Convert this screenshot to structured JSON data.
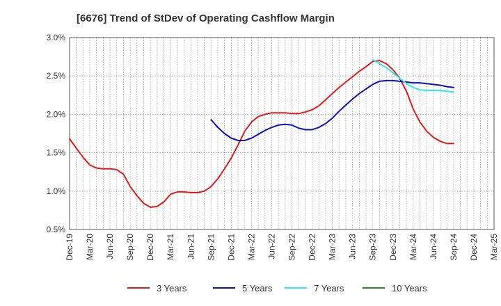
{
  "chart_data": {
    "type": "line",
    "title": "[6676]  Trend of StDev of Operating Cashflow Margin",
    "xlabel": "",
    "ylabel": "",
    "ylim": [
      0.5,
      3.0
    ],
    "y_ticks": [
      "3.0%",
      "2.5%",
      "2.0%",
      "1.5%",
      "1.0%",
      "0.5%"
    ],
    "y_tick_values": [
      3.0,
      2.5,
      2.0,
      1.5,
      1.0,
      0.5
    ],
    "x_tick_labels": [
      "Dec-19",
      "Mar-20",
      "Jun-20",
      "Sep-20",
      "Dec-20",
      "Mar-21",
      "Jun-21",
      "Sep-21",
      "Dec-21",
      "Mar-22",
      "Jun-22",
      "Sep-22",
      "Dec-22",
      "Mar-23",
      "Jun-23",
      "Sep-23",
      "Dec-23",
      "Mar-24",
      "Jun-24",
      "Sep-24",
      "Dec-24",
      "Mar-25"
    ],
    "x_range": [
      "Dec-19",
      "Mar-25"
    ],
    "grid": "dotted vertical monthly, dotted horizontal",
    "legend_position": "bottom",
    "series": [
      {
        "name": "3 Years",
        "color": "#e31a1c",
        "points": [
          [
            "Dec-19",
            1.68
          ],
          [
            "Jan-20",
            1.56
          ],
          [
            "Feb-20",
            1.44
          ],
          [
            "Mar-20",
            1.34
          ],
          [
            "Apr-20",
            1.3
          ],
          [
            "May-20",
            1.29
          ],
          [
            "Jun-20",
            1.29
          ],
          [
            "Jul-20",
            1.28
          ],
          [
            "Aug-20",
            1.22
          ],
          [
            "Sep-20",
            1.06
          ],
          [
            "Oct-20",
            0.94
          ],
          [
            "Nov-20",
            0.84
          ],
          [
            "Dec-20",
            0.79
          ],
          [
            "Jan-21",
            0.8
          ],
          [
            "Feb-21",
            0.86
          ],
          [
            "Mar-21",
            0.96
          ],
          [
            "Apr-21",
            0.99
          ],
          [
            "May-21",
            0.99
          ],
          [
            "Jun-21",
            0.98
          ],
          [
            "Jul-21",
            0.98
          ],
          [
            "Aug-21",
            1.0
          ],
          [
            "Sep-21",
            1.06
          ],
          [
            "Oct-21",
            1.16
          ],
          [
            "Nov-21",
            1.29
          ],
          [
            "Dec-21",
            1.43
          ],
          [
            "Jan-22",
            1.6
          ],
          [
            "Feb-22",
            1.78
          ],
          [
            "Mar-22",
            1.9
          ],
          [
            "Apr-22",
            1.97
          ],
          [
            "May-22",
            2.0
          ],
          [
            "Jun-22",
            2.02
          ],
          [
            "Jul-22",
            2.02
          ],
          [
            "Aug-22",
            2.02
          ],
          [
            "Sep-22",
            2.01
          ],
          [
            "Oct-22",
            2.01
          ],
          [
            "Nov-22",
            2.03
          ],
          [
            "Dec-22",
            2.06
          ],
          [
            "Jan-23",
            2.11
          ],
          [
            "Feb-23",
            2.19
          ],
          [
            "Mar-23",
            2.27
          ],
          [
            "Apr-23",
            2.35
          ],
          [
            "May-23",
            2.42
          ],
          [
            "Jun-23",
            2.49
          ],
          [
            "Jul-23",
            2.56
          ],
          [
            "Aug-23",
            2.62
          ],
          [
            "Sep-23",
            2.69
          ],
          [
            "Oct-23",
            2.7
          ],
          [
            "Nov-23",
            2.66
          ],
          [
            "Dec-23",
            2.58
          ],
          [
            "Jan-24",
            2.47
          ],
          [
            "Feb-24",
            2.3
          ],
          [
            "Mar-24",
            2.07
          ],
          [
            "Apr-24",
            1.9
          ],
          [
            "May-24",
            1.78
          ],
          [
            "Jun-24",
            1.7
          ],
          [
            "Jul-24",
            1.65
          ],
          [
            "Aug-24",
            1.62
          ],
          [
            "Sep-24",
            1.62
          ]
        ]
      },
      {
        "name": "5 Years",
        "color": "#0a0fc0",
        "points": [
          [
            "Sep-21",
            1.93
          ],
          [
            "Oct-21",
            1.83
          ],
          [
            "Nov-21",
            1.75
          ],
          [
            "Dec-21",
            1.69
          ],
          [
            "Jan-22",
            1.66
          ],
          [
            "Feb-22",
            1.66
          ],
          [
            "Mar-22",
            1.69
          ],
          [
            "Apr-22",
            1.74
          ],
          [
            "May-22",
            1.79
          ],
          [
            "Jun-22",
            1.83
          ],
          [
            "Jul-22",
            1.86
          ],
          [
            "Aug-22",
            1.87
          ],
          [
            "Sep-22",
            1.86
          ],
          [
            "Oct-22",
            1.82
          ],
          [
            "Nov-22",
            1.8
          ],
          [
            "Dec-22",
            1.8
          ],
          [
            "Jan-23",
            1.83
          ],
          [
            "Feb-23",
            1.88
          ],
          [
            "Mar-23",
            1.95
          ],
          [
            "Apr-23",
            2.04
          ],
          [
            "May-23",
            2.12
          ],
          [
            "Jun-23",
            2.2
          ],
          [
            "Jul-23",
            2.27
          ],
          [
            "Aug-23",
            2.33
          ],
          [
            "Sep-23",
            2.39
          ],
          [
            "Oct-23",
            2.43
          ],
          [
            "Nov-23",
            2.44
          ],
          [
            "Dec-23",
            2.44
          ],
          [
            "Jan-24",
            2.43
          ],
          [
            "Feb-24",
            2.42
          ],
          [
            "Mar-24",
            2.41
          ],
          [
            "Apr-24",
            2.41
          ],
          [
            "May-24",
            2.4
          ],
          [
            "Jun-24",
            2.39
          ],
          [
            "Jul-24",
            2.38
          ],
          [
            "Aug-24",
            2.36
          ],
          [
            "Sep-24",
            2.35
          ]
        ]
      },
      {
        "name": "7 Years",
        "color": "#2ee8f0",
        "points": [
          [
            "Sep-23",
            2.71
          ],
          [
            "Oct-23",
            2.66
          ],
          [
            "Nov-23",
            2.61
          ],
          [
            "Dec-23",
            2.54
          ],
          [
            "Jan-24",
            2.47
          ],
          [
            "Feb-24",
            2.4
          ],
          [
            "Mar-24",
            2.35
          ],
          [
            "Apr-24",
            2.32
          ],
          [
            "May-24",
            2.31
          ],
          [
            "Jun-24",
            2.31
          ],
          [
            "Jul-24",
            2.31
          ],
          [
            "Aug-24",
            2.3
          ],
          [
            "Sep-24",
            2.29
          ]
        ]
      },
      {
        "name": "10 Years",
        "color": "#2a8a2a",
        "points": []
      }
    ]
  }
}
